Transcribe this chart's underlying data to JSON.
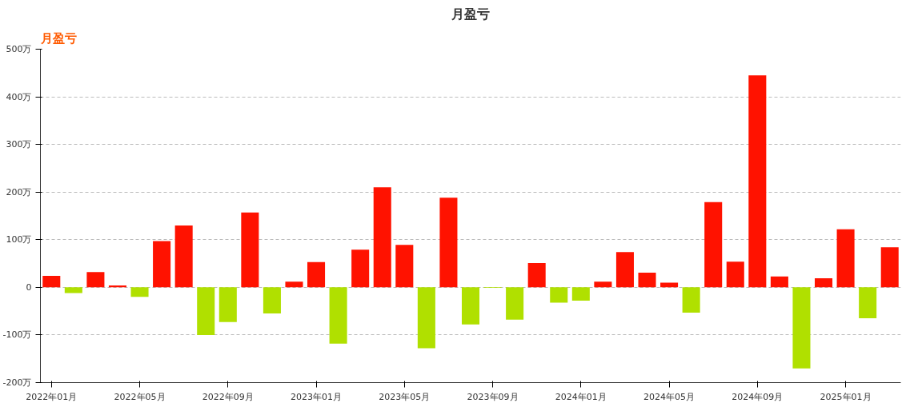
{
  "chart_data": {
    "type": "bar",
    "title": "月盈亏",
    "annotations": [
      "月盈亏"
    ],
    "categories": [
      "2022年01月",
      null,
      null,
      null,
      "2022年05月",
      null,
      null,
      null,
      "2022年09月",
      null,
      null,
      null,
      "2023年01月",
      null,
      null,
      null,
      "2023年05月",
      null,
      null,
      null,
      "2023年09月",
      null,
      null,
      null,
      "2024年01月",
      null,
      null,
      null,
      "2024年05月",
      null,
      null,
      null,
      "2024年09月",
      null,
      null,
      null,
      "2025年01月",
      null,
      null
    ],
    "values": [
      24,
      -12,
      32,
      4,
      -20,
      97,
      130,
      -100,
      -73,
      157,
      -55,
      12,
      53,
      -118,
      79,
      210,
      89,
      -128,
      188,
      -78,
      -1,
      -68,
      51,
      -32,
      -28,
      12,
      74,
      31,
      10,
      -53,
      179,
      54,
      445,
      23,
      -170,
      19,
      122,
      -65,
      84
    ],
    "colors": [
      "#ff1200",
      "#b0e000",
      "#ff1200",
      "#ff1200",
      "#b0e000",
      "#ff1200",
      "#ff1200",
      "#b0e000",
      "#b0e000",
      "#ff1200",
      "#b0e000",
      "#ff1200",
      "#ff1200",
      "#b0e000",
      "#ff1200",
      "#ff1200",
      "#ff1200",
      "#b0e000",
      "#ff1200",
      "#b0e000",
      "#b0e000",
      "#b0e000",
      "#ff1200",
      "#b0e000",
      "#b0e000",
      "#ff1200",
      "#ff1200",
      "#ff1200",
      "#ff1200",
      "#b0e000",
      "#ff1200",
      "#ff1200",
      "#ff1200",
      "#ff1200",
      "#b0e000",
      "#ff1200",
      "#ff1200",
      "#b0e000",
      "#ff1200"
    ],
    "ylim": [
      -200,
      500
    ],
    "yticks": [
      {
        "value": -200,
        "label": "-200万"
      },
      {
        "value": -100,
        "label": "-100万"
      },
      {
        "value": 0,
        "label": "0"
      },
      {
        "value": 100,
        "label": "100万"
      },
      {
        "value": 200,
        "label": "200万"
      },
      {
        "value": 300,
        "label": "300万"
      },
      {
        "value": 400,
        "label": "400万"
      },
      {
        "value": 500,
        "label": "500万"
      }
    ],
    "grid": "y"
  }
}
